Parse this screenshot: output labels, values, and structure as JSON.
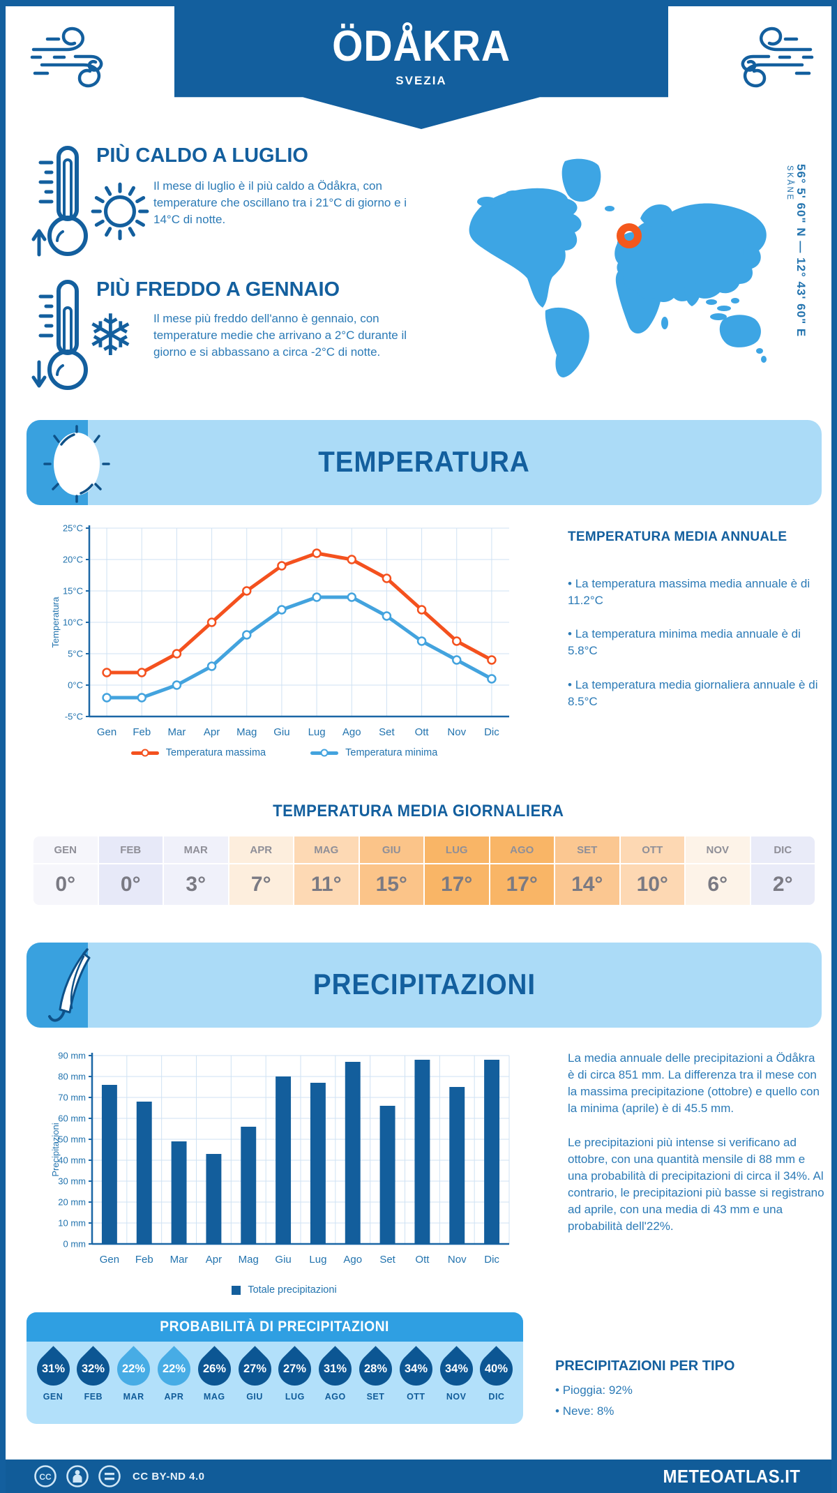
{
  "header": {
    "title": "ÖDÅKRA",
    "subtitle": "SVEZIA"
  },
  "location": {
    "coordinates": "56° 5' 60\" N — 12° 43' 60\" E",
    "region": "SKÅNE"
  },
  "highlights": {
    "warmest": {
      "title": "PIÙ CALDO A LUGLIO",
      "text": "Il mese di luglio è il più caldo a Ödåkra, con temperature che oscillano tra i 21°C di giorno e i 14°C di notte."
    },
    "coldest": {
      "title": "PIÙ FREDDO A GENNAIO",
      "text": "Il mese più freddo dell'anno è gennaio, con temperature medie che arrivano a 2°C durante il giorno e si abbassano a circa -2°C di notte."
    }
  },
  "temperature": {
    "section_title": "TEMPERATURA",
    "annual": {
      "title": "TEMPERATURA MEDIA ANNUALE",
      "bullets": [
        "La temperatura massima media annuale è di 11.2°C",
        "La temperatura minima media annuale è di 5.8°C",
        "La temperatura media giornaliera annuale è di 8.5°C"
      ]
    },
    "daily": {
      "title": "TEMPERATURA MEDIA GIORNALIERA",
      "months": [
        "GEN",
        "FEB",
        "MAR",
        "APR",
        "MAG",
        "GIU",
        "LUG",
        "AGO",
        "SET",
        "OTT",
        "NOV",
        "DIC"
      ],
      "values": [
        "0°",
        "0°",
        "3°",
        "7°",
        "11°",
        "15°",
        "17°",
        "17°",
        "14°",
        "10°",
        "6°",
        "2°"
      ],
      "colors": [
        "#F6F6FB",
        "#E7E9F8",
        "#F0F1FA",
        "#FDEEDD",
        "#FDD9B4",
        "#FBC489",
        "#F9B566",
        "#F9B566",
        "#FBC791",
        "#FDD8B3",
        "#FDF3E8",
        "#E9EBF8"
      ]
    }
  },
  "precipitation": {
    "section_title": "PRECIPITAZIONI",
    "summary": [
      "La media annuale delle precipitazioni a Ödåkra è di circa 851 mm. La differenza tra il mese con la massima precipitazione (ottobre) e quello con la minima (aprile) è di 45.5 mm.",
      "Le precipitazioni più intense si verificano ad ottobre, con una quantità mensile di 88 mm e una probabilità di precipitazioni di circa il 34%. Al contrario, le precipitazioni più basse si registrano ad aprile, con una media di 43 mm e una probabilità dell'22%."
    ],
    "probability": {
      "title": "PROBABILITÀ DI PRECIPITAZIONI",
      "months": [
        "GEN",
        "FEB",
        "MAR",
        "APR",
        "MAG",
        "GIU",
        "LUG",
        "AGO",
        "SET",
        "OTT",
        "NOV",
        "DIC"
      ],
      "values": [
        "31%",
        "32%",
        "22%",
        "22%",
        "26%",
        "27%",
        "27%",
        "31%",
        "28%",
        "34%",
        "34%",
        "40%"
      ],
      "drop_colors": [
        "#0C5693",
        "#0C5693",
        "#47ACE5",
        "#47ACE5",
        "#0C5693",
        "#0C5693",
        "#0C5693",
        "#0C5693",
        "#0C5693",
        "#0C5693",
        "#0C5693",
        "#0C5693"
      ]
    },
    "by_type": {
      "title": "PRECIPITAZIONI PER TIPO",
      "bullets": [
        "Pioggia: 92%",
        "Neve: 8%"
      ]
    }
  },
  "chart_data": [
    {
      "type": "line",
      "categories": [
        "Gen",
        "Feb",
        "Mar",
        "Apr",
        "Mag",
        "Giu",
        "Lug",
        "Ago",
        "Set",
        "Ott",
        "Nov",
        "Dic"
      ],
      "series": [
        {
          "name": "Temperatura massima",
          "color": "#F4511E",
          "values": [
            2,
            2,
            5,
            10,
            15,
            19,
            21,
            20,
            17,
            12,
            7,
            4
          ]
        },
        {
          "name": "Temperatura minima",
          "color": "#43A3DE",
          "values": [
            -2,
            -2,
            0,
            3,
            8,
            12,
            14,
            14,
            11,
            7,
            4,
            1
          ]
        }
      ],
      "ylabel": "Temperatura",
      "ylim": [
        -5,
        25
      ],
      "ytick_step": 5,
      "ytick_suffix": "°C",
      "grid": true,
      "legend_position": "bottom"
    },
    {
      "type": "bar",
      "categories": [
        "Gen",
        "Feb",
        "Mar",
        "Apr",
        "Mag",
        "Giu",
        "Lug",
        "Ago",
        "Set",
        "Ott",
        "Nov",
        "Dic"
      ],
      "values": [
        76,
        68,
        49,
        43,
        56,
        80,
        77,
        87,
        66,
        88,
        75,
        88
      ],
      "series_name": "Totale precipitazioni",
      "color": "#135E9C",
      "ylabel": "Precipitazioni",
      "ylim": [
        0,
        90
      ],
      "ytick_step": 10,
      "ytick_suffix": " mm",
      "grid": true,
      "legend_position": "bottom"
    }
  ],
  "footer": {
    "license": "CC BY-ND 4.0",
    "site": "METEOATLAS.IT"
  }
}
